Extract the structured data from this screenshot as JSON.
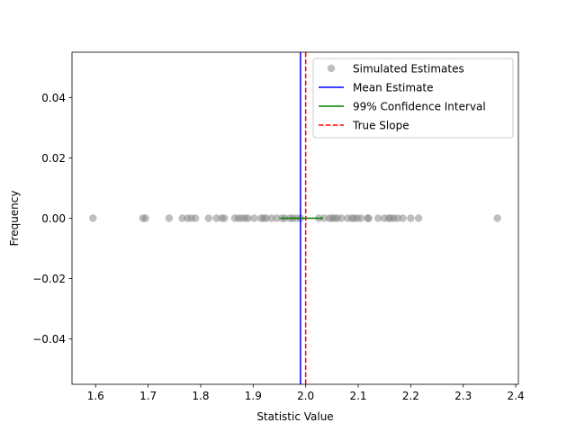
{
  "chart_data": {
    "type": "scatter",
    "title": "",
    "xlabel": "Statistic Value",
    "ylabel": "Frequency",
    "xlim": [
      1.555,
      2.405
    ],
    "ylim": [
      -0.055,
      0.055
    ],
    "xticks": [
      1.6,
      1.7,
      1.8,
      1.9,
      2.0,
      2.1,
      2.2,
      2.3,
      2.4
    ],
    "xtick_labels": [
      "1.6",
      "1.7",
      "1.8",
      "1.9",
      "2.0",
      "2.1",
      "2.2",
      "2.3",
      "2.4"
    ],
    "yticks": [
      0.04,
      0.02,
      0.0,
      -0.02,
      -0.04
    ],
    "ytick_labels": [
      "0.04",
      "0.02",
      "0.00",
      "−0.02",
      "−0.04"
    ],
    "grid": false,
    "legend_position": "upper right",
    "series": [
      {
        "name": "Simulated Estimates",
        "kind": "scatter",
        "color": "#808080",
        "x": [
          1.595,
          1.69,
          1.695,
          1.74,
          1.765,
          1.775,
          1.782,
          1.79,
          1.815,
          1.83,
          1.84,
          1.845,
          1.865,
          1.872,
          1.878,
          1.885,
          1.89,
          1.902,
          1.915,
          1.92,
          1.925,
          1.935,
          1.945,
          1.955,
          1.96,
          1.97,
          1.975,
          1.982,
          1.99,
          2.025,
          2.035,
          2.045,
          2.05,
          2.055,
          2.06,
          2.068,
          2.08,
          2.088,
          2.092,
          2.098,
          2.105,
          2.118,
          2.12,
          2.138,
          2.15,
          2.158,
          2.162,
          2.168,
          2.175,
          2.185,
          2.2,
          2.215,
          2.365
        ],
        "y": [
          0,
          0,
          0,
          0,
          0,
          0,
          0,
          0,
          0,
          0,
          0,
          0,
          0,
          0,
          0,
          0,
          0,
          0,
          0,
          0,
          0,
          0,
          0,
          0,
          0,
          0,
          0,
          0,
          0,
          0,
          0,
          0,
          0,
          0,
          0,
          0,
          0,
          0,
          0,
          0,
          0,
          0,
          0,
          0,
          0,
          0,
          0,
          0,
          0,
          0,
          0,
          0,
          0
        ]
      },
      {
        "name": "Mean Estimate",
        "kind": "vline",
        "color": "#0000ff",
        "x": 1.99
      },
      {
        "name": "99% Confidence Interval",
        "kind": "hline_segment",
        "color": "#008000",
        "x": [
          1.952,
          2.033
        ],
        "y": 0
      },
      {
        "name": "True Slope",
        "kind": "vline_dashed",
        "color": "#ff0000",
        "x": 2.0
      }
    ]
  }
}
